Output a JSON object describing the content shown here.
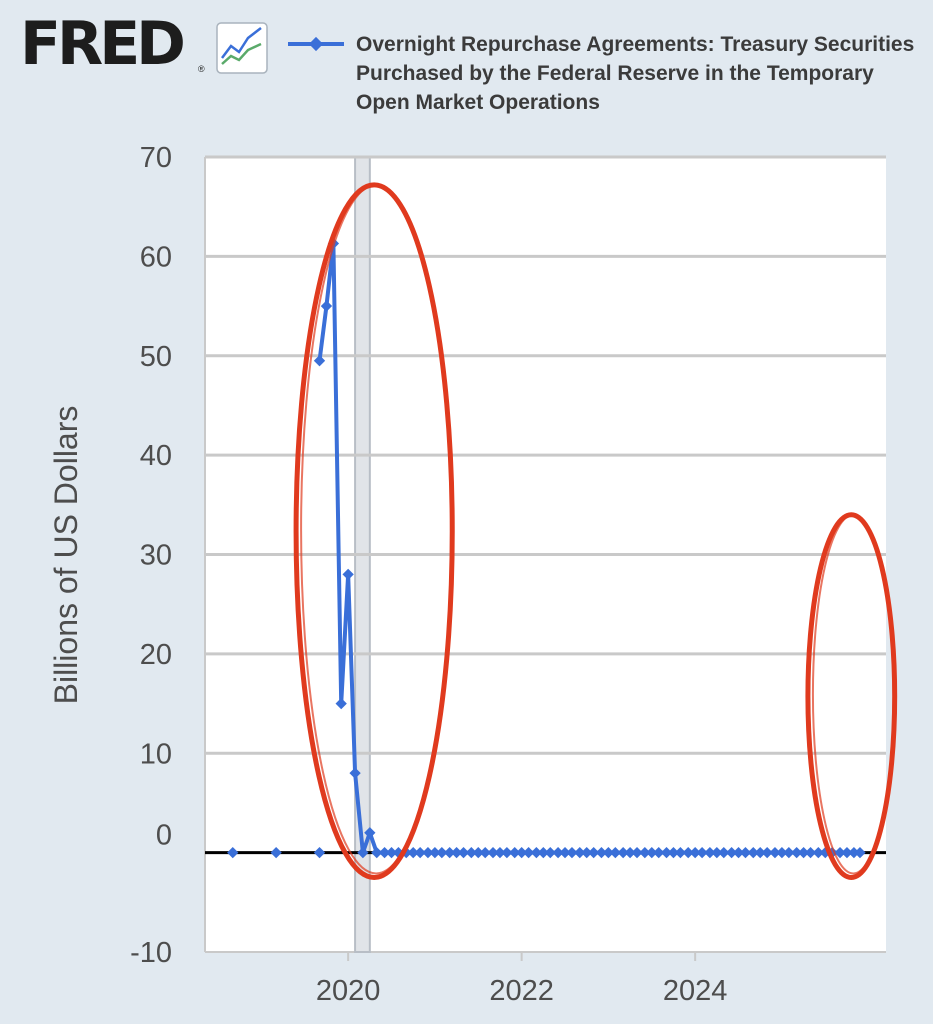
{
  "brand": {
    "logo_text": "FRED",
    "logo_reg": "®",
    "logo_icon": "fred-chart-icon"
  },
  "legend": {
    "label": "Overnight Repurchase Agreements: Treasury Securities Purchased by the Federal Reserve in the Temporary Open Market Operations",
    "color": "#3a6fd8"
  },
  "colors": {
    "background": "#e1e9f0",
    "plot_background": "#ffffff",
    "grid": "#c9c9c9",
    "zero_line": "#000000",
    "recession_band": "#e1e4e8",
    "annotation": "#e03a1e"
  },
  "chart_data": {
    "type": "line",
    "ylabel": "Billions of US Dollars",
    "ylim": [
      -10,
      70
    ],
    "yticks": [
      -10,
      0,
      10,
      20,
      30,
      40,
      50,
      60,
      70
    ],
    "xlim": [
      2018.35,
      2026.2
    ],
    "xticks": [
      2020,
      2022,
      2024
    ],
    "grid": true,
    "recession_band": [
      2020.08,
      2020.25
    ],
    "annotations": [
      {
        "type": "ellipse",
        "x_range": [
          2019.4,
          2021.2
        ],
        "y_range": [
          -2.5,
          67.2
        ]
      },
      {
        "type": "ellipse",
        "x_range": [
          2025.3,
          2026.3
        ],
        "y_range": [
          -2.5,
          34
        ]
      }
    ],
    "series": [
      {
        "name": "Overnight Repurchase Agreements: Treasury Securities Purchased by the Federal Reserve in the Temporary Open Market Operations",
        "segments": [
          {
            "x": [
              2018.67
            ],
            "y": [
              0
            ]
          },
          {
            "x": [
              2019.17
            ],
            "y": [
              0
            ]
          },
          {
            "x": [
              2019.67
            ],
            "y": [
              0
            ]
          },
          {
            "x": [
              2019.67,
              2019.75,
              2019.83,
              2019.92,
              2020.0,
              2020.08,
              2020.17,
              2020.25,
              2020.33,
              2020.42,
              2020.5,
              2020.58,
              2020.67,
              2020.75,
              2020.83,
              2020.92,
              2021.0,
              2021.08,
              2021.17,
              2021.25,
              2021.33,
              2021.42,
              2021.5,
              2021.58,
              2021.67,
              2021.75,
              2021.83,
              2021.92,
              2022.0,
              2022.08,
              2022.17,
              2022.25,
              2022.33,
              2022.42,
              2022.5,
              2022.58,
              2022.67,
              2022.75,
              2022.83,
              2022.92,
              2023.0,
              2023.08,
              2023.17,
              2023.25,
              2023.33,
              2023.42,
              2023.5,
              2023.58,
              2023.67,
              2023.75,
              2023.83,
              2023.92,
              2024.0,
              2024.08,
              2024.17,
              2024.25,
              2024.33,
              2024.42,
              2024.5,
              2024.58,
              2024.67,
              2024.75,
              2024.83,
              2024.92,
              2025.0,
              2025.08,
              2025.17,
              2025.25,
              2025.33,
              2025.42,
              2025.5,
              2025.58,
              2025.67,
              2025.75,
              2025.83,
              2025.9
            ],
            "y": [
              49.5,
              55,
              61.3,
              15,
              28,
              8,
              0,
              2,
              0,
              0,
              0,
              0,
              0,
              0,
              0,
              0,
              0,
              0,
              0,
              0,
              0,
              0,
              0,
              0,
              0,
              0,
              0,
              0,
              0,
              0,
              0,
              0,
              0,
              0,
              0,
              0,
              0,
              0,
              0,
              0,
              0,
              0,
              0,
              0,
              0,
              0,
              0,
              0,
              0,
              0,
              0,
              0,
              0,
              0,
              0,
              0,
              0,
              0,
              0,
              0,
              0,
              0,
              0,
              0,
              0,
              0,
              0,
              0,
              0,
              0,
              0,
              0,
              0,
              0,
              0,
              0
            ]
          }
        ]
      }
    ]
  }
}
